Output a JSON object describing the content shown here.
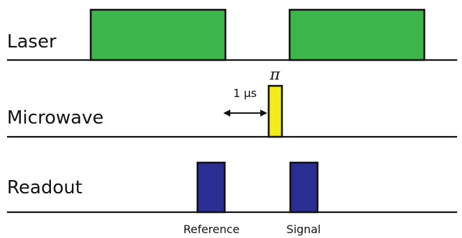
{
  "colors": {
    "laser": "#3cb64a",
    "microwave": "#f2ec1c",
    "readout": "#2a2e92",
    "line": "#111111"
  },
  "channels": {
    "laser": {
      "label": "Laser"
    },
    "microwave": {
      "label": "Microwave"
    },
    "readout": {
      "label": "Readout"
    }
  },
  "annotations": {
    "pi_pulse": "π",
    "delay": "1 µs",
    "reference": "Reference",
    "signal": "Signal"
  }
}
